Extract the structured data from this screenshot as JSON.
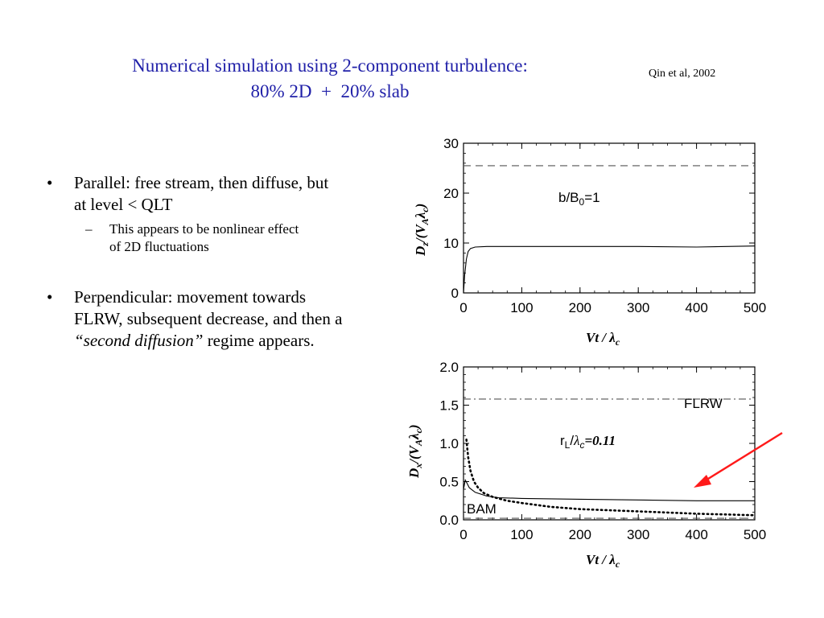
{
  "slide": {
    "title_line1": "Numerical simulation using 2-component turbulence:",
    "title_line2": "80% 2D  +  20% slab",
    "citation": "Qin et al, 2002",
    "bullets": [
      {
        "marker": "•",
        "text": "Parallel: free stream, then diffuse, but at level < QLT",
        "sub": {
          "marker": "–",
          "text": "This appears to be nonlinear effect of 2D fluctuations"
        }
      },
      {
        "marker": "•",
        "text_before": "Perpendicular: movement towards FLRW,  subsequent decrease, and then a ",
        "text_em": "“second diffusion”",
        "text_after": " regime appears."
      }
    ]
  },
  "chart_data": [
    {
      "type": "line",
      "xlabel": "Vt / λc",
      "ylabel": "Dz/(VAλc)",
      "xticks": [
        "0",
        "100",
        "200",
        "300",
        "400",
        "500"
      ],
      "yticks": [
        "0",
        "10",
        "20",
        "30"
      ],
      "xlim": [
        0,
        500
      ],
      "ylim": [
        0,
        30
      ],
      "annotations": [
        {
          "text": "b/B0=1"
        }
      ],
      "series": [
        {
          "style": "dashed",
          "x": [
            0,
            500
          ],
          "y": [
            25.5,
            25.5
          ]
        },
        {
          "style": "solid",
          "x": [
            0,
            2,
            5,
            8,
            12,
            20,
            40,
            100,
            200,
            300,
            400,
            500
          ],
          "y": [
            0,
            3.5,
            6.8,
            8.3,
            8.9,
            9.2,
            9.3,
            9.3,
            9.3,
            9.3,
            9.2,
            9.4
          ]
        }
      ]
    },
    {
      "type": "line",
      "xlabel": "Vt / λc",
      "ylabel": "Dx/(VAλc)",
      "xticks": [
        "0",
        "100",
        "200",
        "300",
        "400",
        "500"
      ],
      "yticks": [
        "0.0",
        "0.5",
        "1.0",
        "1.5",
        "2.0"
      ],
      "xlim": [
        0,
        500
      ],
      "ylim": [
        0,
        2
      ],
      "annotations": [
        {
          "text": "FLRW"
        },
        {
          "text": "rL/λc=0.11"
        },
        {
          "text": "BAM"
        }
      ],
      "series": [
        {
          "name": "FLRW",
          "style": "dashdot",
          "x": [
            0,
            500
          ],
          "y": [
            1.58,
            1.58
          ]
        },
        {
          "style": "solid",
          "x": [
            0,
            3,
            6,
            10,
            20,
            40,
            60,
            100,
            200,
            300,
            400,
            500
          ],
          "y": [
            0.4,
            0.52,
            0.48,
            0.42,
            0.36,
            0.31,
            0.29,
            0.28,
            0.27,
            0.26,
            0.25,
            0.25
          ]
        },
        {
          "style": "dotted",
          "x": [
            5,
            8,
            12,
            18,
            25,
            35,
            50,
            75,
            100,
            150,
            200,
            300,
            400,
            500
          ],
          "y": [
            1.05,
            0.82,
            0.64,
            0.5,
            0.42,
            0.35,
            0.3,
            0.25,
            0.22,
            0.17,
            0.14,
            0.11,
            0.08,
            0.06
          ]
        },
        {
          "name": "BAM",
          "style": "dashed",
          "x": [
            0,
            500
          ],
          "y": [
            0.02,
            0.02
          ]
        }
      ]
    }
  ]
}
